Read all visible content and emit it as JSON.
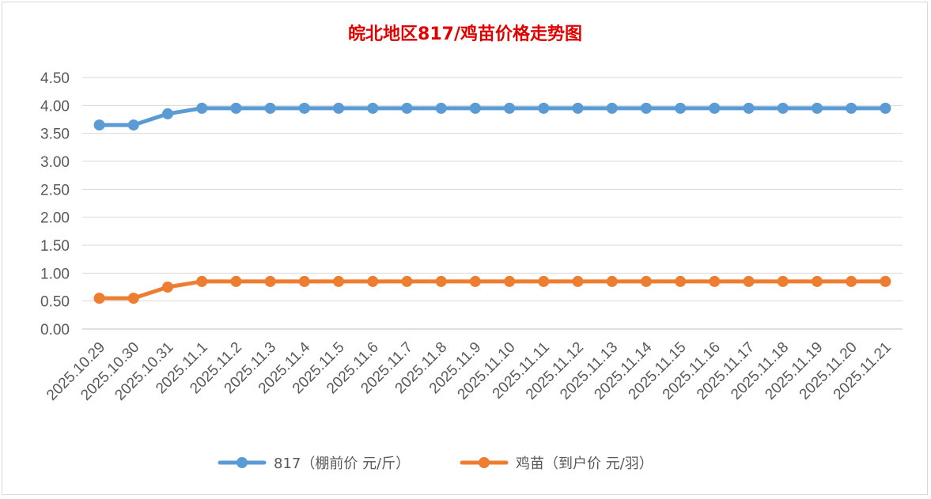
{
  "chart_data": {
    "type": "line",
    "title": "皖北地区817/鸡苗价格走势图",
    "title_color": "#e00000",
    "categories": [
      "2025.10.29",
      "2025.10.30",
      "2025.10.31",
      "2025.11.1",
      "2025.11.2",
      "2025.11.3",
      "2025.11.4",
      "2025.11.5",
      "2025.11.6",
      "2025.11.7",
      "2025.11.8",
      "2025.11.9",
      "2025.11.10",
      "2025.11.11",
      "2025.11.12",
      "2025.11.13",
      "2025.11.14",
      "2025.11.15",
      "2025.11.16",
      "2025.11.17",
      "2025.11.18",
      "2025.11.19",
      "2025.11.20",
      "2025.11.21"
    ],
    "series": [
      {
        "name": "817（棚前价 元/斤）",
        "color": "#5b9bd5",
        "values": [
          3.65,
          3.65,
          3.85,
          3.95,
          3.95,
          3.95,
          3.95,
          3.95,
          3.95,
          3.95,
          3.95,
          3.95,
          3.95,
          3.95,
          3.95,
          3.95,
          3.95,
          3.95,
          3.95,
          3.95,
          3.95,
          3.95,
          3.95,
          3.95
        ]
      },
      {
        "name": "鸡苗（到户价 元/羽）",
        "color": "#ed7d31",
        "values": [
          0.55,
          0.55,
          0.75,
          0.85,
          0.85,
          0.85,
          0.85,
          0.85,
          0.85,
          0.85,
          0.85,
          0.85,
          0.85,
          0.85,
          0.85,
          0.85,
          0.85,
          0.85,
          0.85,
          0.85,
          0.85,
          0.85,
          0.85,
          0.85
        ]
      }
    ],
    "ylim": [
      0,
      4.5
    ],
    "yticks": [
      "0.00",
      "0.50",
      "1.00",
      "1.50",
      "2.00",
      "2.50",
      "3.00",
      "3.50",
      "4.00",
      "4.50"
    ],
    "grid": true,
    "legend_position": "bottom"
  }
}
